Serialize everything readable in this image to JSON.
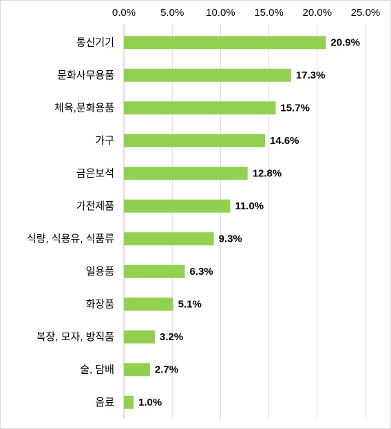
{
  "chart_data": {
    "type": "bar",
    "orientation": "horizontal",
    "categories": [
      "통신기기",
      "문화사무용품",
      "체육,문화용품",
      "가구",
      "금은보석",
      "가전제품",
      "식량, 식용유, 식품류",
      "일용품",
      "화장품",
      "복장, 모자, 방직품",
      "술, 담배",
      "음료"
    ],
    "values": [
      20.9,
      17.3,
      15.7,
      14.6,
      12.8,
      11.0,
      9.3,
      6.3,
      5.1,
      3.2,
      2.7,
      1.0
    ],
    "value_labels": [
      "20.9%",
      "17.3%",
      "15.7%",
      "14.6%",
      "12.8%",
      "11.0%",
      "9.3%",
      "6.3%",
      "5.1%",
      "3.2%",
      "2.7%",
      "1.0%"
    ],
    "color": "#92d050",
    "xlim": [
      0,
      25
    ],
    "xticks": [
      {
        "value": 0,
        "label": "0.0%"
      },
      {
        "value": 5,
        "label": "5.0%"
      },
      {
        "value": 10,
        "label": "10.0%"
      },
      {
        "value": 15,
        "label": "15.0%"
      },
      {
        "value": 20,
        "label": "20.0%"
      },
      {
        "value": 25,
        "label": "25.0%"
      }
    ],
    "grid": true
  }
}
